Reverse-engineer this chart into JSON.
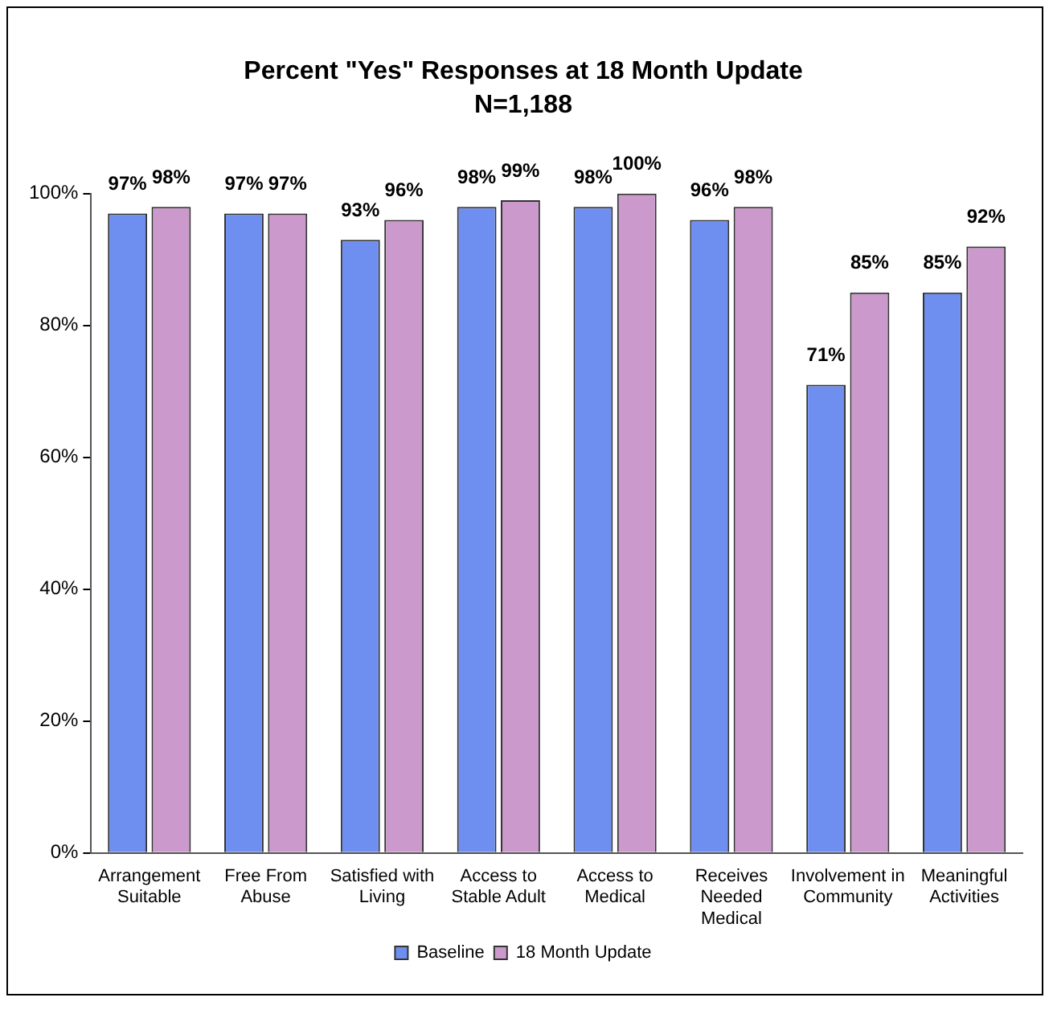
{
  "chart_data": {
    "type": "bar",
    "title": "Percent \"Yes\" Responses at 18 Month Update",
    "subtitle": "N=1,188",
    "categories": [
      "Arrangement Suitable",
      "Free From Abuse",
      "Satisfied with Living",
      "Access to Stable Adult",
      "Access to Medical",
      "Receives Needed Medical",
      "Involvement in Community",
      "Meaningful Activities"
    ],
    "series": [
      {
        "name": "Baseline",
        "color": "#6f8ff0",
        "values": [
          97,
          97,
          93,
          98,
          98,
          96,
          71,
          85
        ],
        "value_labels": [
          "97%",
          "97%",
          "93%",
          "98%",
          "98%",
          "96%",
          "71%",
          "85%"
        ]
      },
      {
        "name": "18 Month Update",
        "color": "#cc99cc",
        "values": [
          98,
          97,
          96,
          99,
          100,
          98,
          85,
          92
        ],
        "value_labels": [
          "98%",
          "97%",
          "96%",
          "99%",
          "100%",
          "98%",
          "85%",
          "92%"
        ]
      }
    ],
    "ylim": [
      0,
      100
    ],
    "yticks": [
      {
        "value": 0,
        "label": "0%"
      },
      {
        "value": 20,
        "label": "20%"
      },
      {
        "value": 40,
        "label": "40%"
      },
      {
        "value": 60,
        "label": "60%"
      },
      {
        "value": 80,
        "label": "80%"
      },
      {
        "value": 100,
        "label": "100%"
      }
    ],
    "grid": false,
    "legend": "bottom"
  }
}
